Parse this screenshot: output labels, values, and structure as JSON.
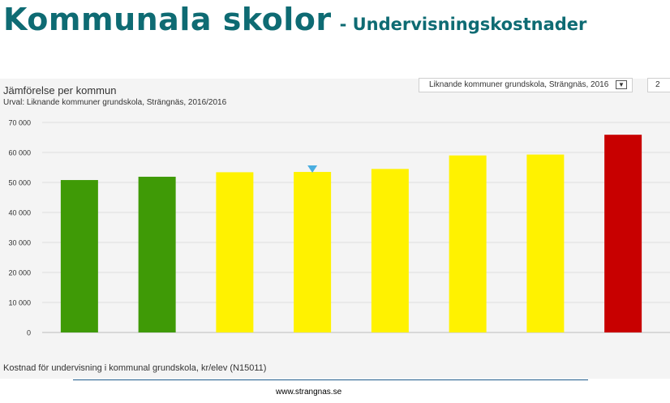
{
  "slide": {
    "title": "Kommunala skolor",
    "subtitle": "- Undervisningskostnader"
  },
  "panel": {
    "title": "Jämförelse per kommun",
    "selection": "Urval: Liknande kommuner grundskola, Strängnäs, 2016/2016",
    "dropdown_value": "Liknande kommuner grundskola, Strängnäs, 2016",
    "dropdown2_value": "2",
    "caption": "Kostnad för undervisning i kommunal grundskola, kr/elev (N15011)"
  },
  "footer": {
    "url": "www.strangnas.se"
  },
  "colors": {
    "green": "#3f9a06",
    "yellow": "#fff200",
    "red": "#c80000",
    "marker": "#4aaee0",
    "title": "#0e6b73"
  },
  "chart_data": {
    "type": "bar",
    "categories": [
      "",
      "",
      "",
      "",
      "",
      "",
      "",
      ""
    ],
    "values": [
      50800,
      51900,
      53400,
      53500,
      54500,
      59000,
      59300,
      65900
    ],
    "colors": [
      "green",
      "green",
      "yellow",
      "yellow",
      "yellow",
      "yellow",
      "yellow",
      "red"
    ],
    "highlight_index": 3,
    "ylim": [
      0,
      70000
    ],
    "yticks": [
      "0",
      "10 000",
      "20 000",
      "30 000",
      "40 000",
      "50 000",
      "60 000",
      "70 000"
    ],
    "grid": true,
    "legend": "none"
  }
}
